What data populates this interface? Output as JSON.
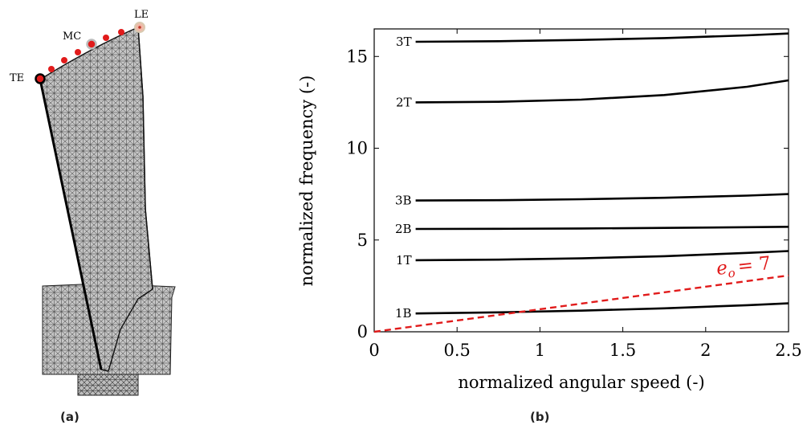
{
  "panels": {
    "a": "(a)",
    "b": "(b)"
  },
  "mesh_markers": {
    "te": "TE",
    "mc": "MC",
    "le": "LE"
  },
  "colors": {
    "curve": "#000000",
    "engine_order": "#e11b1b",
    "mesh_fill": "#c8c8c8",
    "mesh_line": "#333333",
    "marker": "#e11b1b"
  },
  "chart_data": {
    "type": "line",
    "xlabel": "normalized angular speed (-)",
    "ylabel": "normalized frequency (-)",
    "xlim": [
      0,
      2.5
    ],
    "ylim": [
      0,
      16.5
    ],
    "xticks": [
      "0",
      "0.5",
      "1",
      "1.5",
      "2",
      "2.5"
    ],
    "yticks": [
      "0",
      "5",
      "10",
      "15"
    ],
    "grid": false,
    "series": [
      {
        "name": "1B",
        "x": [
          0.25,
          0.75,
          1.25,
          1.75,
          2.25,
          2.5
        ],
        "y": [
          1.0,
          1.06,
          1.15,
          1.28,
          1.45,
          1.55
        ]
      },
      {
        "name": "1T",
        "x": [
          0.25,
          0.75,
          1.25,
          1.75,
          2.25,
          2.5
        ],
        "y": [
          3.9,
          3.93,
          4.0,
          4.12,
          4.3,
          4.4
        ]
      },
      {
        "name": "2B",
        "x": [
          0.25,
          0.75,
          1.25,
          1.75,
          2.25,
          2.5
        ],
        "y": [
          5.6,
          5.61,
          5.63,
          5.66,
          5.7,
          5.72
        ]
      },
      {
        "name": "3B",
        "x": [
          0.25,
          0.75,
          1.25,
          1.75,
          2.25,
          2.5
        ],
        "y": [
          7.15,
          7.17,
          7.22,
          7.3,
          7.42,
          7.5
        ]
      },
      {
        "name": "2T",
        "x": [
          0.25,
          0.75,
          1.25,
          1.75,
          2.25,
          2.5
        ],
        "y": [
          12.5,
          12.53,
          12.65,
          12.9,
          13.35,
          13.7
        ]
      },
      {
        "name": "3T",
        "x": [
          0.25,
          0.75,
          1.25,
          1.75,
          2.25,
          2.5
        ],
        "y": [
          15.8,
          15.83,
          15.9,
          16.0,
          16.15,
          16.25
        ]
      }
    ],
    "engine_order_line": {
      "label": "e",
      "subscript": "o",
      "value_text": "= 7",
      "x": [
        0,
        2.5
      ],
      "y": [
        0,
        3.07
      ]
    }
  }
}
